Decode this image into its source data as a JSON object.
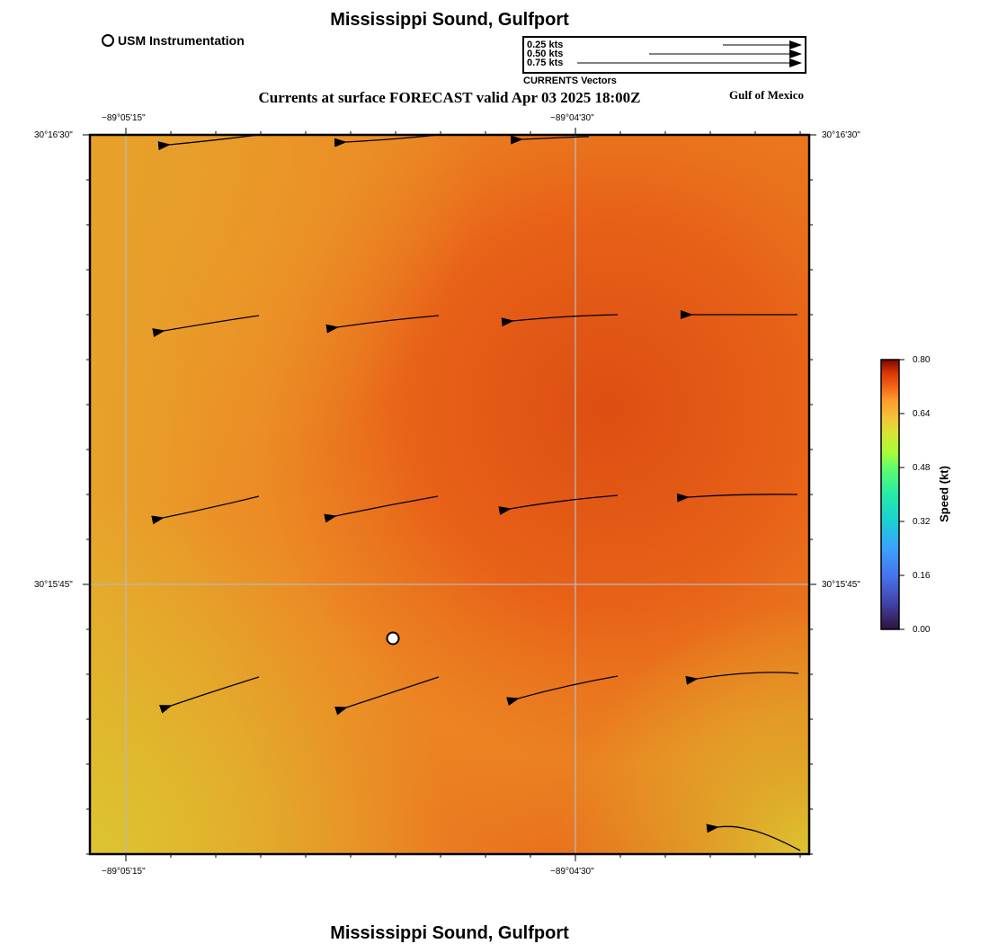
{
  "title": "Mississippi Sound, Gulfport",
  "footer_title": "Mississippi Sound, Gulfport",
  "usm_legend": "USM Instrumentation",
  "vector_legend": {
    "items": [
      {
        "label": "0.25 kts",
        "speed": 0.25
      },
      {
        "label": "0.50 kts",
        "speed": 0.5
      },
      {
        "label": "0.75 kts",
        "speed": 0.75
      }
    ],
    "caption": "CURRENTS Vectors"
  },
  "subtitle": "Currents at surface FORECAST valid Apr 03 2025 18:00Z",
  "region_label": "Gulf of Mexico",
  "axes": {
    "lon_ticks": [
      {
        "label": "−89°05'15\"",
        "lon": -89.0875
      },
      {
        "label": "−89°04'30\"",
        "lon": -89.075
      }
    ],
    "lat_ticks": [
      {
        "label": "30°16'30\"",
        "lat": 30.275
      },
      {
        "label": "30°15'45\"",
        "lat": 30.2625
      }
    ]
  },
  "colorbar": {
    "title": "Speed (kt)",
    "ticks": [
      "0.80",
      "0.64",
      "0.48",
      "0.32",
      "0.16",
      "0.00"
    ],
    "min": 0.0,
    "max": 0.8
  },
  "colors": {
    "field_light": "#e8a028",
    "field_mid": "#ec7a20",
    "field_dark": "#e05a14",
    "field_yellow": "#dcbf30",
    "marker": "#ffffff"
  }
}
